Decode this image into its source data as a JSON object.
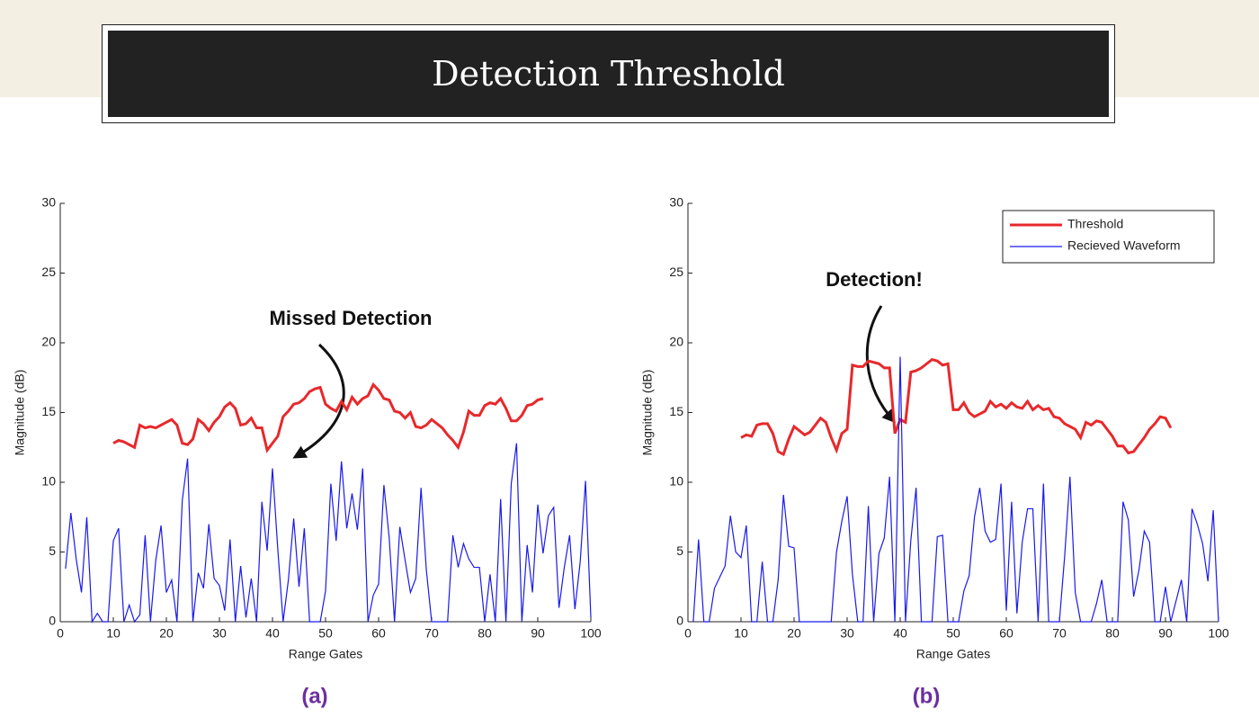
{
  "header": {
    "title": "Detection Threshold"
  },
  "chart_data": [
    {
      "type": "line",
      "label": "(a)",
      "annotation": "Missed Detection",
      "x_label": "Range Gates",
      "y_label": "Magnitude (dB)",
      "xlim": [
        0,
        100
      ],
      "xticks": [
        0,
        10,
        20,
        30,
        40,
        50,
        60,
        70,
        80,
        90,
        100
      ],
      "ylim": [
        0,
        30
      ],
      "yticks": [
        0,
        5,
        10,
        15,
        20,
        25,
        30
      ],
      "series": [
        {
          "color": "#e8282b",
          "x": [
            10,
            11,
            12,
            13,
            14,
            15,
            16,
            17,
            18,
            19,
            20,
            21,
            22,
            23,
            24,
            25,
            26,
            27,
            28,
            29,
            30,
            31,
            32,
            33,
            34,
            35,
            36,
            37,
            38,
            39,
            40,
            41,
            42,
            43,
            44,
            45,
            46,
            47,
            48,
            49,
            50,
            51,
            52,
            53,
            54,
            55,
            56,
            57,
            58,
            59,
            60,
            61,
            62,
            63,
            64,
            65,
            66,
            67,
            68,
            69,
            70,
            71,
            72,
            73,
            74,
            75,
            76,
            77,
            78,
            79,
            80,
            81,
            82,
            83,
            84,
            85,
            86,
            87,
            88,
            89,
            90,
            91
          ],
          "values": [
            12.8,
            13.0,
            12.9,
            12.7,
            12.5,
            14.1,
            13.9,
            14.0,
            13.9,
            14.1,
            14.3,
            14.5,
            14.1,
            12.8,
            12.7,
            13.1,
            14.5,
            14.2,
            13.7,
            14.3,
            14.7,
            15.4,
            15.7,
            15.3,
            14.1,
            14.2,
            14.6,
            13.9,
            13.9,
            12.3,
            12.8,
            13.3,
            14.7,
            15.1,
            15.6,
            15.7,
            16.0,
            16.5,
            16.7,
            16.8,
            15.6,
            15.3,
            15.1,
            15.8,
            15.2,
            16.1,
            15.6,
            16.0,
            16.2,
            17.0,
            16.6,
            16.0,
            15.9,
            15.1,
            15.0,
            14.6,
            15.0,
            14.0,
            13.9,
            14.1,
            14.5,
            14.2,
            13.9,
            13.4,
            13.0,
            12.5,
            13.6,
            15.1,
            14.8,
            14.8,
            15.5,
            15.7,
            15.6,
            16.0,
            15.3,
            14.4,
            14.4,
            14.8,
            15.5,
            15.6,
            15.9,
            16.0
          ]
        },
        {
          "color": "#1a1aee",
          "x": [
            1,
            2,
            3,
            4,
            5,
            6,
            7,
            8,
            9,
            10,
            11,
            12,
            13,
            14,
            15,
            16,
            17,
            18,
            19,
            20,
            21,
            22,
            23,
            24,
            25,
            26,
            27,
            28,
            29,
            30,
            31,
            32,
            33,
            34,
            35,
            36,
            37,
            38,
            39,
            40,
            41,
            42,
            43,
            44,
            45,
            46,
            47,
            48,
            49,
            50,
            51,
            52,
            53,
            54,
            55,
            56,
            57,
            58,
            59,
            60,
            61,
            62,
            63,
            64,
            65,
            66,
            67,
            68,
            69,
            70,
            71,
            72,
            73,
            74,
            75,
            76,
            77,
            78,
            79,
            80,
            81,
            82,
            83,
            84,
            85,
            86,
            87,
            88,
            89,
            90,
            91,
            92,
            93,
            94,
            95,
            96,
            97,
            98,
            99,
            100
          ],
          "values": [
            3.8,
            7.8,
            4.5,
            2.1,
            7.5,
            0,
            0.6,
            0,
            0,
            5.8,
            6.7,
            0,
            1.2,
            0,
            0.5,
            6.2,
            0,
            4.4,
            6.9,
            2.1,
            3.0,
            0,
            8.7,
            11.7,
            0,
            3.5,
            2.4,
            7.0,
            3.1,
            2.6,
            0.8,
            5.9,
            0,
            4.0,
            0.3,
            3.1,
            0,
            8.6,
            5.1,
            11.0,
            5.2,
            0,
            3.0,
            7.4,
            2.5,
            6.7,
            0,
            0,
            0,
            2.2,
            9.9,
            5.8,
            11.5,
            6.7,
            9.2,
            6.6,
            11.0,
            0,
            1.9,
            2.7,
            9.8,
            6.0,
            0,
            6.8,
            4.4,
            2.1,
            3.1,
            9.6,
            3.7,
            0,
            0,
            0,
            0,
            6.2,
            3.9,
            5.6,
            4.5,
            3.9,
            3.9,
            0,
            3.4,
            0,
            8.8,
            0,
            9.9,
            12.8,
            0,
            5.5,
            2.1,
            8.4,
            4.9,
            7.6,
            8.2,
            1.0,
            3.9,
            6.2,
            0.9,
            4.3,
            10.1,
            0.3
          ]
        }
      ]
    },
    {
      "type": "line",
      "label": "(b)",
      "annotation": "Detection!",
      "x_label": "Range Gates",
      "y_label": "Magnitude (dB)",
      "xlim": [
        0,
        100
      ],
      "xticks": [
        0,
        10,
        20,
        30,
        40,
        50,
        60,
        70,
        80,
        90,
        100
      ],
      "ylim": [
        0,
        30
      ],
      "yticks": [
        0,
        5,
        10,
        15,
        20,
        25,
        30
      ],
      "legend": "upper right",
      "series": [
        {
          "name": "Threshold",
          "color": "#e8282b",
          "x": [
            10,
            11,
            12,
            13,
            14,
            15,
            16,
            17,
            18,
            19,
            20,
            21,
            22,
            23,
            24,
            25,
            26,
            27,
            28,
            29,
            30,
            31,
            32,
            33,
            34,
            35,
            36,
            37,
            38,
            39,
            40,
            41,
            42,
            43,
            44,
            45,
            46,
            47,
            48,
            49,
            50,
            51,
            52,
            53,
            54,
            55,
            56,
            57,
            58,
            59,
            60,
            61,
            62,
            63,
            64,
            65,
            66,
            67,
            68,
            69,
            70,
            71,
            72,
            73,
            74,
            75,
            76,
            77,
            78,
            79,
            80,
            81,
            82,
            83,
            84,
            85,
            86,
            87,
            88,
            89,
            90,
            91
          ],
          "values": [
            13.2,
            13.4,
            13.3,
            14.1,
            14.2,
            14.2,
            13.5,
            12.2,
            12.0,
            13.1,
            14.0,
            13.7,
            13.4,
            13.6,
            14.1,
            14.6,
            14.3,
            13.2,
            12.3,
            13.5,
            13.8,
            18.4,
            18.3,
            18.3,
            18.7,
            18.6,
            18.5,
            18.2,
            18.2,
            13.5,
            14.5,
            14.3,
            17.9,
            18.0,
            18.2,
            18.5,
            18.8,
            18.7,
            18.4,
            18.5,
            15.2,
            15.2,
            15.7,
            15.0,
            14.7,
            14.9,
            15.1,
            15.8,
            15.4,
            15.6,
            15.3,
            15.7,
            15.4,
            15.3,
            15.8,
            15.2,
            15.5,
            15.2,
            15.3,
            14.7,
            14.6,
            14.2,
            14.0,
            13.8,
            13.2,
            14.3,
            14.1,
            14.4,
            14.3,
            13.8,
            13.3,
            12.6,
            12.6,
            12.1,
            12.2,
            12.7,
            13.2,
            13.8,
            14.2,
            14.7,
            14.6,
            13.9
          ]
        },
        {
          "name": "Recieved Waveform",
          "color": "#1a1aee",
          "x": [
            1,
            2,
            3,
            4,
            5,
            6,
            7,
            8,
            9,
            10,
            11,
            12,
            13,
            14,
            15,
            16,
            17,
            18,
            19,
            20,
            21,
            22,
            23,
            24,
            25,
            26,
            27,
            28,
            29,
            30,
            31,
            32,
            33,
            34,
            35,
            36,
            37,
            38,
            39,
            40,
            41,
            42,
            43,
            44,
            45,
            46,
            47,
            48,
            49,
            50,
            51,
            52,
            53,
            54,
            55,
            56,
            57,
            58,
            59,
            60,
            61,
            62,
            63,
            64,
            65,
            66,
            67,
            68,
            69,
            70,
            71,
            72,
            73,
            74,
            75,
            76,
            77,
            78,
            79,
            80,
            81,
            82,
            83,
            84,
            85,
            86,
            87,
            88,
            89,
            90,
            91,
            92,
            93,
            94,
            95,
            96,
            97,
            98,
            99,
            100
          ],
          "values": [
            0,
            5.9,
            0,
            0,
            2.4,
            3.2,
            4.0,
            7.6,
            5.0,
            4.6,
            6.9,
            0,
            0,
            4.3,
            0,
            0,
            3.0,
            9.1,
            5.4,
            5.3,
            0,
            0,
            0,
            0,
            0,
            0,
            0,
            5.0,
            7.2,
            9.0,
            3.4,
            0,
            0,
            8.3,
            0,
            4.9,
            6.0,
            10.4,
            0,
            19.0,
            0,
            5.8,
            9.6,
            0,
            0,
            0,
            6.1,
            6.2,
            0,
            0,
            0,
            2.2,
            3.3,
            7.5,
            9.6,
            6.5,
            5.7,
            5.9,
            9.9,
            0.8,
            8.6,
            0.6,
            5.7,
            8.1,
            8.1,
            0,
            9.9,
            0,
            0,
            0,
            4.7,
            10.4,
            2.1,
            0,
            0,
            0,
            1.3,
            3.0,
            0,
            0,
            0,
            8.6,
            7.3,
            1.8,
            3.7,
            6.5,
            5.7,
            0,
            0,
            2.5,
            0,
            1.5,
            3.0,
            0,
            8.1,
            7.0,
            5.6,
            2.9,
            8.0,
            0
          ]
        }
      ]
    }
  ]
}
